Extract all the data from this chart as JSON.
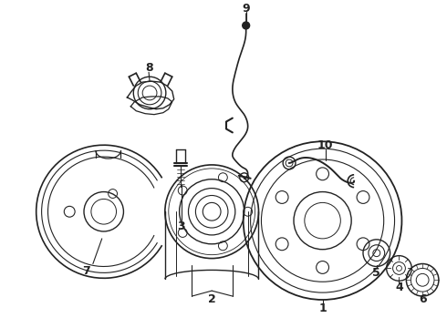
{
  "bg_color": "#ffffff",
  "line_color": "#222222",
  "fig_width": 4.9,
  "fig_height": 3.6,
  "dpi": 100,
  "label_fontsize": 9,
  "label_fontweight": "bold"
}
